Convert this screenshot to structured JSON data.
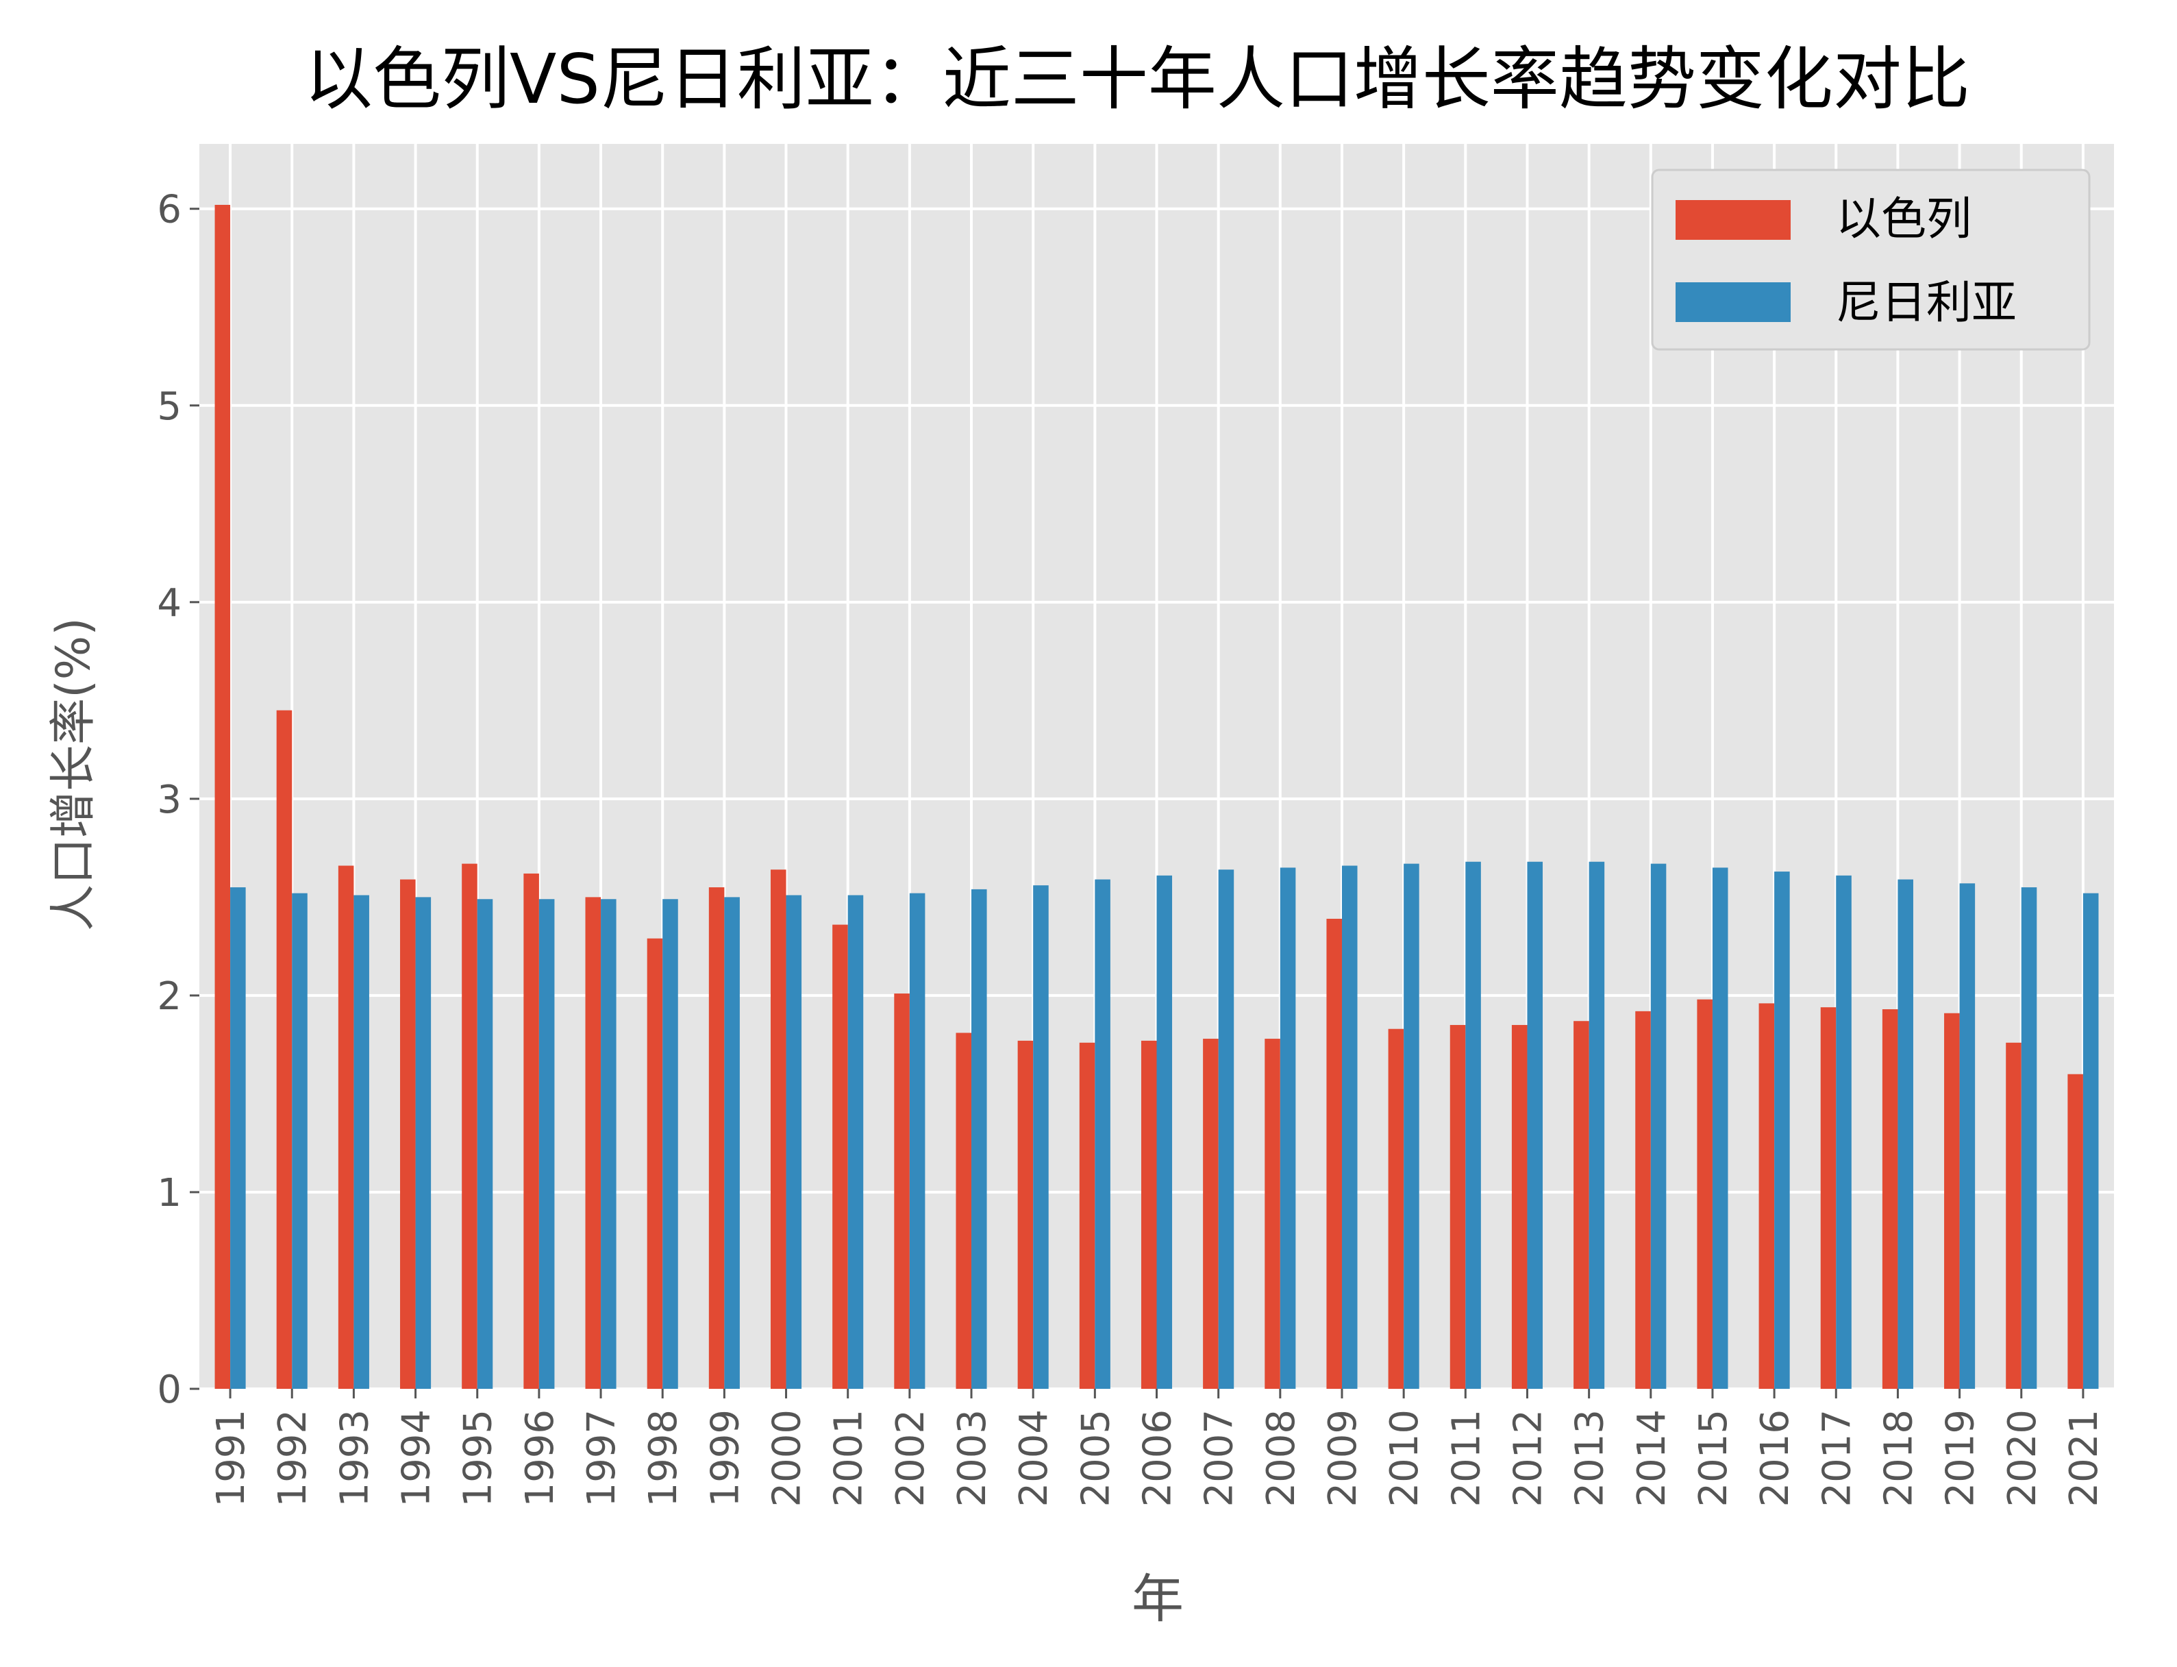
{
  "chart_data": {
    "type": "bar",
    "title": "以色列VS尼日利亚：近三十年人口增长率趋势变化对比",
    "xlabel": "年",
    "ylabel": "人口增长率(%)",
    "ylim": [
      0,
      6.33
    ],
    "yticks": [
      0,
      1,
      2,
      3,
      4,
      5,
      6
    ],
    "grid": true,
    "legend_position": "top-right",
    "categories": [
      "1991",
      "1992",
      "1993",
      "1994",
      "1995",
      "1996",
      "1997",
      "1998",
      "1999",
      "2000",
      "2001",
      "2002",
      "2003",
      "2004",
      "2005",
      "2006",
      "2007",
      "2008",
      "2009",
      "2010",
      "2011",
      "2012",
      "2013",
      "2014",
      "2015",
      "2016",
      "2017",
      "2018",
      "2019",
      "2020",
      "2021"
    ],
    "series": [
      {
        "name": "以色列",
        "color": "#E24A33",
        "values": [
          6.02,
          3.45,
          2.66,
          2.59,
          2.67,
          2.62,
          2.5,
          2.29,
          2.55,
          2.64,
          2.36,
          2.01,
          1.81,
          1.77,
          1.76,
          1.77,
          1.78,
          1.78,
          2.39,
          1.83,
          1.85,
          1.85,
          1.87,
          1.92,
          1.98,
          1.96,
          1.94,
          1.93,
          1.91,
          1.76,
          1.6
        ]
      },
      {
        "name": "尼日利亚",
        "color": "#348ABD",
        "values": [
          2.55,
          2.52,
          2.51,
          2.5,
          2.49,
          2.49,
          2.49,
          2.49,
          2.5,
          2.51,
          2.51,
          2.52,
          2.54,
          2.56,
          2.59,
          2.61,
          2.64,
          2.65,
          2.66,
          2.67,
          2.68,
          2.68,
          2.68,
          2.67,
          2.65,
          2.63,
          2.61,
          2.59,
          2.57,
          2.55,
          2.52
        ]
      }
    ]
  }
}
